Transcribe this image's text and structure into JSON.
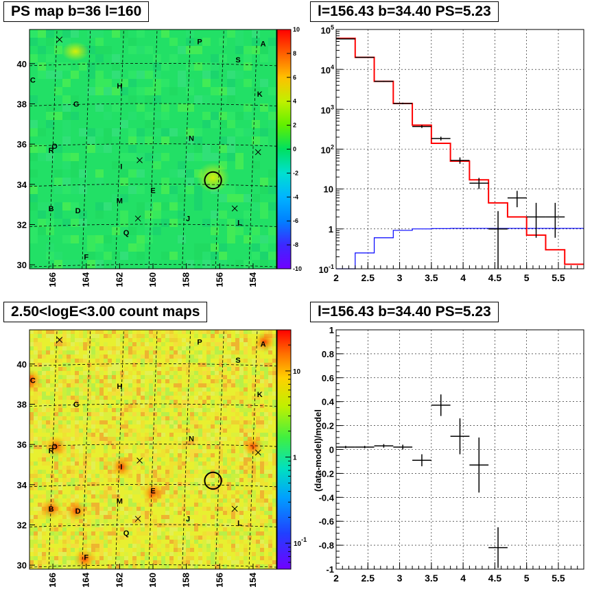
{
  "panels": {
    "tl_title": "PS map b=36 l=160",
    "tr_title": "l=156.43 b=34.40 PS=5.23",
    "bl_title": "2.50<logE<3.00 count maps",
    "br_title": "l=156.43 b=34.40 PS=5.23"
  },
  "colors": {
    "data": "#000000",
    "model": "#ff0000",
    "source": "#0000ff"
  },
  "chart_data": [
    {
      "type": "heatmap",
      "title": "PS map b=36 l=160",
      "xlim": [
        167.4,
        152.6
      ],
      "ylim": [
        29.8,
        41.7
      ],
      "x_ticks": [
        166,
        164,
        162,
        160,
        158,
        156,
        154
      ],
      "y_ticks": [
        30,
        32,
        34,
        36,
        38,
        40
      ],
      "colorbar": {
        "min": -10,
        "max": 10,
        "ticks": [
          -10,
          -8,
          -6,
          -4,
          -2,
          0,
          2,
          4,
          6,
          8,
          10
        ]
      },
      "source_labels": [
        {
          "name": "A",
          "l": 153.4,
          "b": 41.0
        },
        {
          "name": "B",
          "l": 166.1,
          "b": 32.8
        },
        {
          "name": "C",
          "l": 167.2,
          "b": 39.2
        },
        {
          "name": "D",
          "l": 164.5,
          "b": 32.7
        },
        {
          "name": "E",
          "l": 160.0,
          "b": 33.7
        },
        {
          "name": "F",
          "l": 164.0,
          "b": 30.4
        },
        {
          "name": "G",
          "l": 164.6,
          "b": 38.0
        },
        {
          "name": "H",
          "l": 162.0,
          "b": 38.9
        },
        {
          "name": "I",
          "l": 161.9,
          "b": 34.9
        },
        {
          "name": "J",
          "l": 157.9,
          "b": 32.3
        },
        {
          "name": "K",
          "l": 153.6,
          "b": 38.5
        },
        {
          "name": "L",
          "l": 154.8,
          "b": 32.1
        },
        {
          "name": "M",
          "l": 162.0,
          "b": 33.2
        },
        {
          "name": "N",
          "l": 157.7,
          "b": 36.3
        },
        {
          "name": "O",
          "l": 165.9,
          "b": 35.9
        },
        {
          "name": "P",
          "l": 157.2,
          "b": 41.1
        },
        {
          "name": "Q",
          "l": 161.6,
          "b": 31.6
        },
        {
          "name": "R",
          "l": 166.1,
          "b": 35.7
        },
        {
          "name": "S",
          "l": 154.9,
          "b": 40.2
        }
      ],
      "cross_markers": [
        {
          "l": 165.6,
          "b": 41.2
        },
        {
          "l": 160.8,
          "b": 35.2
        },
        {
          "l": 160.9,
          "b": 32.3
        },
        {
          "l": 155.1,
          "b": 32.8
        },
        {
          "l": 153.7,
          "b": 35.6
        }
      ],
      "circle": {
        "l": 156.4,
        "b": 34.2,
        "r": 0.5
      }
    },
    {
      "type": "step",
      "title": "l=156.43 b=34.40 PS=5.23",
      "xlim": [
        2.0,
        5.9
      ],
      "ylim": [
        0.1,
        100000
      ],
      "log_y": true,
      "grid": true,
      "x_ticks": [
        2,
        2.5,
        3,
        3.5,
        4,
        4.5,
        5,
        5.5
      ],
      "y_ticks": [
        {
          "v": 0.1,
          "base": "10",
          "exp": "-1"
        },
        {
          "v": 1,
          "label": "1"
        },
        {
          "v": 10,
          "label": "10"
        },
        {
          "v": 100,
          "base": "10",
          "exp": "2"
        },
        {
          "v": 1000,
          "base": "10",
          "exp": "3"
        },
        {
          "v": 10000,
          "base": "10",
          "exp": "4"
        },
        {
          "v": 100000,
          "base": "10",
          "exp": "5"
        }
      ],
      "bin_edges": [
        2.0,
        2.3,
        2.6,
        2.9,
        3.2,
        3.5,
        3.8,
        4.1,
        4.4,
        4.7,
        5.0,
        5.3,
        5.6,
        5.9
      ],
      "model_values": [
        60000,
        20000,
        5000,
        1400,
        400,
        140,
        50,
        17,
        4.5,
        2.0,
        0.7,
        0.3,
        0.13
      ],
      "source_values": [
        0.1,
        0.25,
        0.6,
        0.92,
        1.0,
        1.02,
        1.03,
        1.03,
        1.03,
        1.03,
        1.03,
        1.03,
        1.03
      ],
      "data_points": [
        {
          "x": 2.15,
          "y": 58000,
          "ylo": 57000,
          "yhi": 59000,
          "xerr": 0.15
        },
        {
          "x": 2.45,
          "y": 20000,
          "ylo": 19600,
          "yhi": 20400,
          "xerr": 0.15
        },
        {
          "x": 2.75,
          "y": 5000,
          "ylo": 4850,
          "yhi": 5150,
          "xerr": 0.15
        },
        {
          "x": 3.05,
          "y": 1400,
          "ylo": 1340,
          "yhi": 1460,
          "xerr": 0.15
        },
        {
          "x": 3.35,
          "y": 370,
          "ylo": 340,
          "yhi": 400,
          "xerr": 0.15
        },
        {
          "x": 3.65,
          "y": 185,
          "ylo": 165,
          "yhi": 205,
          "xerr": 0.15
        },
        {
          "x": 3.95,
          "y": 52,
          "ylo": 43,
          "yhi": 62,
          "xerr": 0.15
        },
        {
          "x": 4.25,
          "y": 14,
          "ylo": 10,
          "yhi": 19,
          "xerr": 0.15
        },
        {
          "x": 4.55,
          "y": 1.0,
          "ylo": 0.1,
          "yhi": 2.8,
          "xerr": 0.15
        },
        {
          "x": 4.85,
          "y": 6,
          "ylo": 3.5,
          "yhi": 9,
          "xerr": 0.15
        },
        {
          "x": 5.15,
          "y": 2,
          "ylo": 0.6,
          "yhi": 4.5,
          "xerr": 0.15
        },
        {
          "x": 5.45,
          "y": 2,
          "ylo": 0.6,
          "yhi": 4.5,
          "xerr": 0.15
        }
      ]
    },
    {
      "type": "heatmap",
      "title": "2.50<logE<3.00 count maps",
      "xlim": [
        167.4,
        152.6
      ],
      "ylim": [
        29.8,
        41.7
      ],
      "x_ticks": [
        166,
        164,
        162,
        160,
        158,
        156,
        154
      ],
      "y_ticks": [
        30,
        32,
        34,
        36,
        38,
        40
      ],
      "colorbar": {
        "log": true,
        "min": 0.05,
        "max": 30,
        "ticks": [
          {
            "v": 0.1,
            "base": "10",
            "exp": "-1"
          },
          {
            "v": 1,
            "label": "1"
          },
          {
            "v": 10,
            "label": "10"
          }
        ]
      },
      "bright_spots": [
        {
          "l": 153.3,
          "b": 41.1
        },
        {
          "l": 167.3,
          "b": 39.2
        },
        {
          "l": 166.1,
          "b": 32.8
        },
        {
          "l": 164.6,
          "b": 32.7
        },
        {
          "l": 160.0,
          "b": 33.6
        },
        {
          "l": 161.9,
          "b": 34.9
        },
        {
          "l": 164.1,
          "b": 30.3
        },
        {
          "l": 154.0,
          "b": 35.9
        },
        {
          "l": 165.8,
          "b": 35.9
        }
      ]
    },
    {
      "type": "scatter",
      "title": "l=156.43 b=34.40 PS=5.23",
      "ylabel": "(data-model)/model",
      "xlim": [
        2.0,
        5.9
      ],
      "ylim": [
        -1,
        1
      ],
      "grid": true,
      "x_ticks": [
        2,
        2.5,
        3,
        3.5,
        4,
        4.5,
        5,
        5.5
      ],
      "y_ticks": [
        -1,
        -0.8,
        -0.6,
        -0.4,
        -0.2,
        0,
        0.2,
        0.4,
        0.6,
        0.8,
        1
      ],
      "points": [
        {
          "x": 2.15,
          "y": 0.02,
          "yerr": 0.01,
          "xerr": 0.15
        },
        {
          "x": 2.45,
          "y": 0.02,
          "yerr": 0.01,
          "xerr": 0.15
        },
        {
          "x": 2.75,
          "y": 0.03,
          "yerr": 0.015,
          "xerr": 0.15
        },
        {
          "x": 3.05,
          "y": 0.02,
          "yerr": 0.02,
          "xerr": 0.15
        },
        {
          "x": 3.35,
          "y": -0.09,
          "yerr": 0.05,
          "xerr": 0.15
        },
        {
          "x": 3.65,
          "y": 0.37,
          "yerr": 0.09,
          "xerr": 0.15
        },
        {
          "x": 3.95,
          "y": 0.11,
          "yerr": 0.15,
          "xerr": 0.15
        },
        {
          "x": 4.25,
          "y": -0.13,
          "yerr": 0.23,
          "xerr": 0.15
        },
        {
          "x": 4.55,
          "y": -0.82,
          "yerr": 0.17,
          "xerr": 0.15
        }
      ]
    }
  ]
}
